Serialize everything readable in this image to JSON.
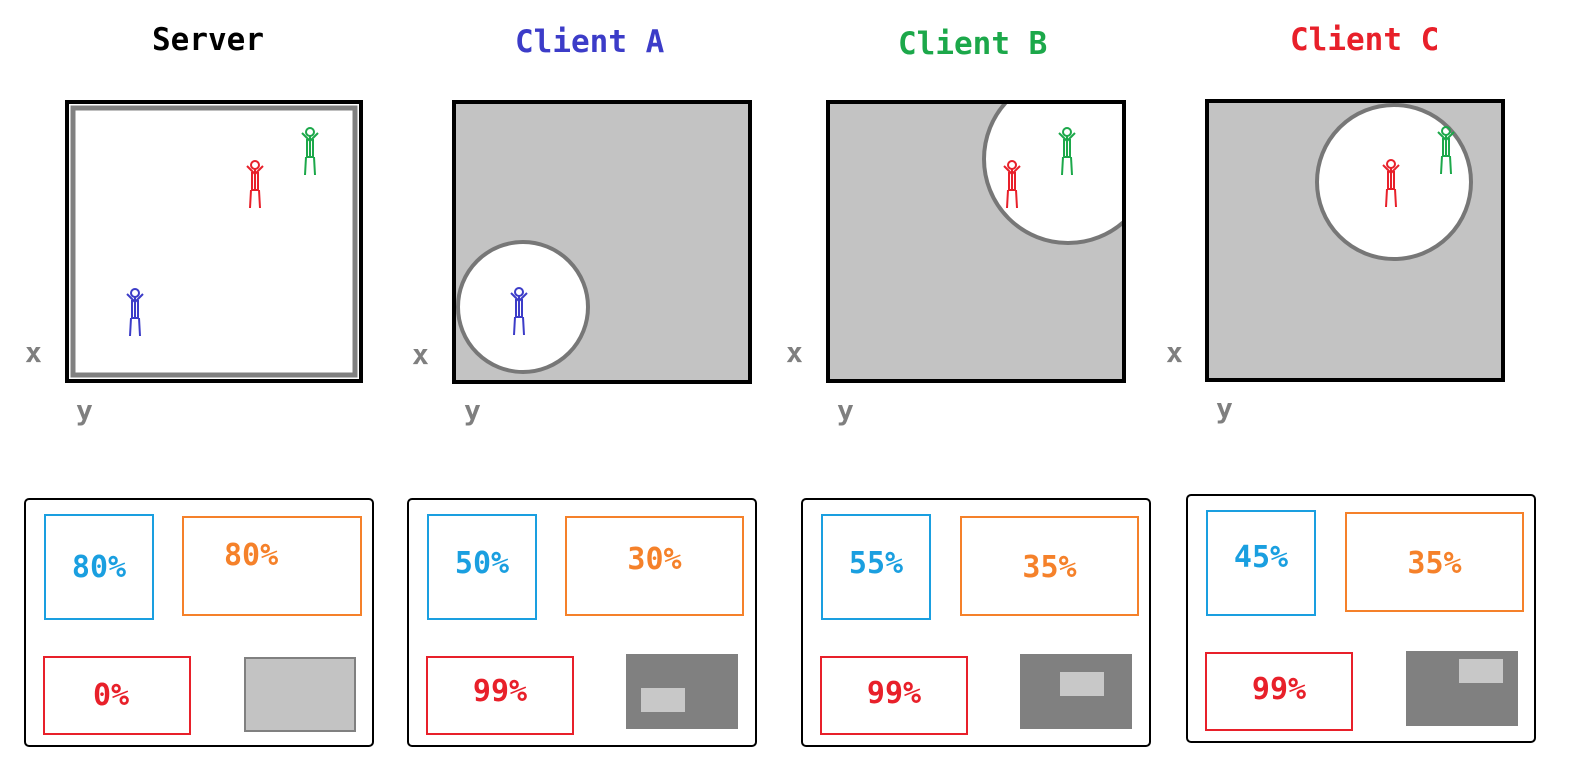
{
  "columns": [
    {
      "title": "Server",
      "title_color": "#000000",
      "axis_x": "x",
      "axis_y": "y",
      "view": "full",
      "stats": {
        "blue": "80%",
        "orange": "80%",
        "red": "0%"
      },
      "minimap": "plain"
    },
    {
      "title": "Client A",
      "title_color": "#3c3cc8",
      "axis_x": "x",
      "axis_y": "y",
      "view": "fog",
      "stats": {
        "blue": "50%",
        "orange": "30%",
        "red": "99%"
      },
      "minimap": "dark"
    },
    {
      "title": "Client B",
      "title_color": "#1ca84a",
      "axis_x": "x",
      "axis_y": "y",
      "view": "fog",
      "stats": {
        "blue": "55%",
        "orange": "35%",
        "red": "99%"
      },
      "minimap": "dark"
    },
    {
      "title": "Client C",
      "title_color": "#e8202a",
      "axis_x": "x",
      "axis_y": "y",
      "view": "fog",
      "stats": {
        "blue": "45%",
        "orange": "35%",
        "red": "99%"
      },
      "minimap": "dark"
    }
  ],
  "colors": {
    "figure_blue": "#3c3cc8",
    "figure_red": "#e8202a",
    "figure_green": "#1ca84a",
    "fog": "#c3c3c3",
    "vision_ring": "#777777",
    "minimap_dark": "#808080",
    "minimap_light": "#c8c8c8"
  }
}
